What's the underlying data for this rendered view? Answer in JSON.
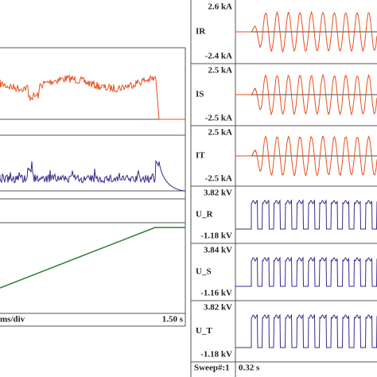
{
  "left_panel": {
    "time_scale": "ms/div",
    "end_time": "1.50 s"
  },
  "right_panel": {
    "channels": [
      {
        "name": "IR",
        "max": "2.6 kA",
        "min": "-2.4 kA"
      },
      {
        "name": "IS",
        "max": "2.5 kA",
        "min": "-2.5 kA"
      },
      {
        "name": "IT",
        "max": "2.5 kA",
        "min": "-2.5 kA"
      },
      {
        "name": "U_R",
        "max": "3.82 kV",
        "min": "-1.18 kV"
      },
      {
        "name": "U_S",
        "max": "3.84 kV",
        "min": "-1.16 kV"
      },
      {
        "name": "U_T",
        "max": "3.82 kV",
        "min": "-1.18 kV"
      }
    ],
    "sweep": "Sweep#:1",
    "time": "0.32 s"
  }
}
